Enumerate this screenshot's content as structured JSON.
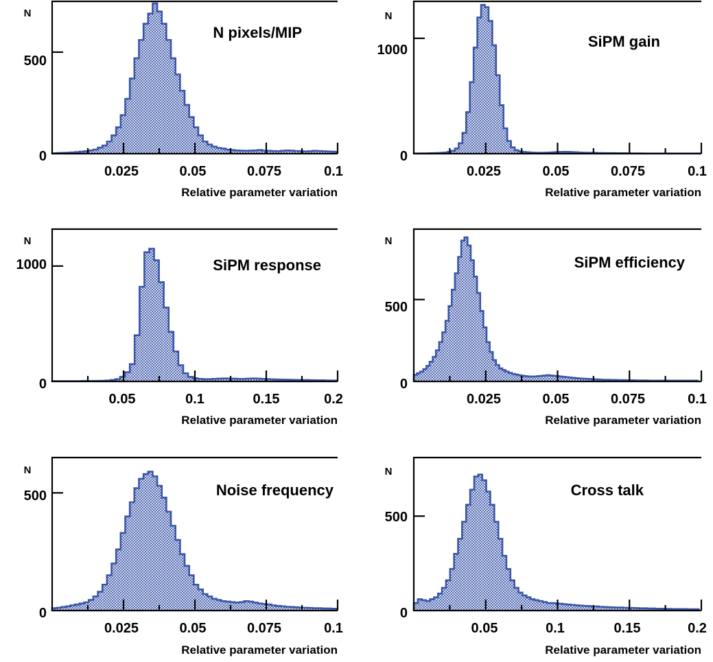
{
  "colors": {
    "fill": "#3a55a8",
    "frame": "#000000",
    "background": "#ffffff"
  },
  "chart_data": [
    {
      "type": "bar",
      "title": "N pixels/MIP",
      "xlabel": "Relative parameter variation",
      "ylabel": "N",
      "xlim": [
        0,
        0.1
      ],
      "ylim": [
        0,
        750
      ],
      "xticks": [
        0.025,
        0.05,
        0.075,
        0.1
      ],
      "xtick_labels": [
        "0.025",
        "0.05",
        "0.075",
        "0.1"
      ],
      "yticks": [
        0,
        500
      ],
      "ytick_labels": [
        "0",
        "500"
      ],
      "bin_width": 0.0016,
      "bin_start": 0.0,
      "values": [
        2,
        3,
        4,
        5,
        6,
        8,
        10,
        12,
        16,
        20,
        30,
        40,
        60,
        90,
        130,
        190,
        270,
        370,
        470,
        560,
        640,
        690,
        740,
        700,
        640,
        560,
        470,
        390,
        310,
        240,
        180,
        130,
        90,
        60,
        45,
        35,
        28,
        25,
        20,
        18,
        16,
        15,
        14,
        15,
        16,
        18,
        15,
        14,
        13,
        12,
        14,
        16,
        15,
        13,
        12,
        11,
        12,
        14,
        13,
        12,
        11,
        10,
        9,
        8
      ]
    },
    {
      "type": "bar",
      "title": "SiPM gain",
      "xlabel": "Relative parameter variation",
      "ylabel": "N",
      "xlim": [
        0,
        0.1
      ],
      "ylim": [
        0,
        1320
      ],
      "xticks": [
        0.025,
        0.05,
        0.075,
        0.1
      ],
      "xtick_labels": [
        "0.025",
        "0.05",
        "0.075",
        "0.1"
      ],
      "yticks": [
        0,
        1000
      ],
      "ytick_labels": [
        "0",
        "1000"
      ],
      "bin_width": 0.0013,
      "bin_start": 0.0,
      "values": [
        2,
        2,
        3,
        3,
        4,
        5,
        6,
        8,
        10,
        15,
        25,
        45,
        90,
        180,
        360,
        620,
        920,
        1180,
        1290,
        1270,
        1150,
        940,
        680,
        420,
        220,
        110,
        55,
        30,
        20,
        15,
        12,
        10,
        9,
        8,
        8,
        9,
        10,
        12,
        14,
        15,
        16,
        15,
        14,
        12,
        10,
        9,
        8,
        8,
        7,
        6,
        6,
        5,
        5,
        5,
        4,
        4,
        4,
        3,
        3,
        3,
        3,
        2,
        2,
        2,
        2,
        2,
        2,
        2,
        2,
        2,
        2,
        2,
        2,
        2,
        2,
        2,
        2
      ]
    },
    {
      "type": "bar",
      "title": "SiPM response",
      "xlabel": "Relative parameter variation",
      "ylabel": "N",
      "xlim": [
        0,
        0.2
      ],
      "ylim": [
        0,
        1320
      ],
      "xticks": [
        0.05,
        0.1,
        0.15,
        0.2
      ],
      "xtick_labels": [
        "0.05",
        "0.1",
        "0.15",
        "0.2"
      ],
      "yticks": [
        0,
        1000
      ],
      "ytick_labels": [
        "0",
        "1000"
      ],
      "bin_width": 0.0034,
      "bin_start": 0.0,
      "values": [
        3,
        3,
        3,
        3,
        3,
        3,
        4,
        4,
        4,
        5,
        6,
        8,
        12,
        20,
        40,
        80,
        150,
        400,
        820,
        1120,
        1150,
        1050,
        860,
        640,
        430,
        260,
        140,
        70,
        40,
        28,
        22,
        20,
        20,
        22,
        24,
        26,
        25,
        24,
        22,
        22,
        24,
        26,
        24,
        22,
        20,
        18,
        17,
        16,
        15,
        14,
        13,
        12,
        12,
        11,
        10,
        10,
        9,
        8,
        8
      ]
    },
    {
      "type": "bar",
      "title": "SiPM efficiency",
      "xlabel": "Relative parameter variation",
      "ylabel": "N",
      "xlim": [
        0,
        0.1
      ],
      "ylim": [
        0,
        930
      ],
      "xticks": [
        0.025,
        0.05,
        0.075,
        0.1
      ],
      "xtick_labels": [
        "0.025",
        "0.05",
        "0.075",
        "0.1"
      ],
      "yticks": [
        0,
        500
      ],
      "ytick_labels": [
        "0",
        "500"
      ],
      "bin_width": 0.0011,
      "bin_start": 0.0,
      "values": [
        40,
        50,
        60,
        75,
        95,
        120,
        150,
        190,
        240,
        300,
        370,
        460,
        560,
        660,
        760,
        860,
        880,
        830,
        740,
        640,
        540,
        430,
        330,
        240,
        180,
        130,
        100,
        80,
        70,
        60,
        52,
        46,
        42,
        38,
        35,
        32,
        30,
        30,
        30,
        32,
        34,
        36,
        38,
        36,
        34,
        32,
        30,
        28,
        26,
        24,
        22,
        20,
        18,
        17,
        16,
        15,
        14,
        13,
        12,
        11,
        10,
        10,
        9,
        9,
        8,
        8,
        8,
        7,
        7,
        7,
        6,
        6,
        6,
        6,
        5,
        5,
        5,
        5,
        5,
        5,
        5,
        5,
        5,
        5,
        5,
        5,
        5,
        5,
        5,
        5
      ]
    },
    {
      "type": "bar",
      "title": "Noise frequency",
      "xlabel": "Relative parameter variation",
      "ylabel": "N",
      "xlim": [
        0,
        0.1
      ],
      "ylim": [
        0,
        650
      ],
      "xticks": [
        0.025,
        0.05,
        0.075,
        0.1
      ],
      "xtick_labels": [
        "0.025",
        "0.05",
        "0.075",
        "0.1"
      ],
      "yticks": [
        0,
        500
      ],
      "ytick_labels": [
        "0",
        "500"
      ],
      "bin_width": 0.0016,
      "bin_start": 0.0,
      "values": [
        10,
        12,
        15,
        18,
        22,
        26,
        30,
        35,
        45,
        60,
        80,
        110,
        150,
        200,
        260,
        330,
        400,
        460,
        520,
        560,
        580,
        590,
        570,
        530,
        480,
        420,
        360,
        300,
        240,
        190,
        150,
        110,
        90,
        70,
        60,
        50,
        45,
        40,
        38,
        36,
        34,
        36,
        40,
        38,
        34,
        30,
        28,
        26,
        22,
        20,
        18,
        16,
        15,
        14,
        12,
        12,
        11,
        10,
        10,
        9,
        9,
        8,
        8
      ]
    },
    {
      "type": "bar",
      "title": "Cross talk",
      "xlabel": "Relative parameter variation",
      "ylabel": "N",
      "xlim": [
        0,
        0.2
      ],
      "ylim": [
        0,
        810
      ],
      "xticks": [
        0.05,
        0.1,
        0.15,
        0.2
      ],
      "xtick_labels": [
        "0.05",
        "0.1",
        "0.15",
        "0.2"
      ],
      "yticks": [
        0,
        500
      ],
      "ytick_labels": [
        "0",
        "500"
      ],
      "bin_width": 0.0028,
      "bin_start": 0.0,
      "values": [
        40,
        60,
        55,
        50,
        60,
        70,
        90,
        120,
        160,
        220,
        300,
        380,
        470,
        560,
        640,
        710,
        720,
        690,
        630,
        560,
        470,
        380,
        290,
        220,
        160,
        120,
        95,
        80,
        70,
        60,
        55,
        50,
        45,
        40,
        40,
        38,
        36,
        34,
        32,
        30,
        28,
        26,
        25,
        24,
        22,
        22,
        20,
        19,
        18,
        17,
        16,
        16,
        15,
        14,
        14,
        13,
        12,
        12,
        11,
        11,
        10,
        10,
        9,
        9,
        8,
        8,
        8,
        8,
        7,
        7,
        7
      ]
    }
  ]
}
